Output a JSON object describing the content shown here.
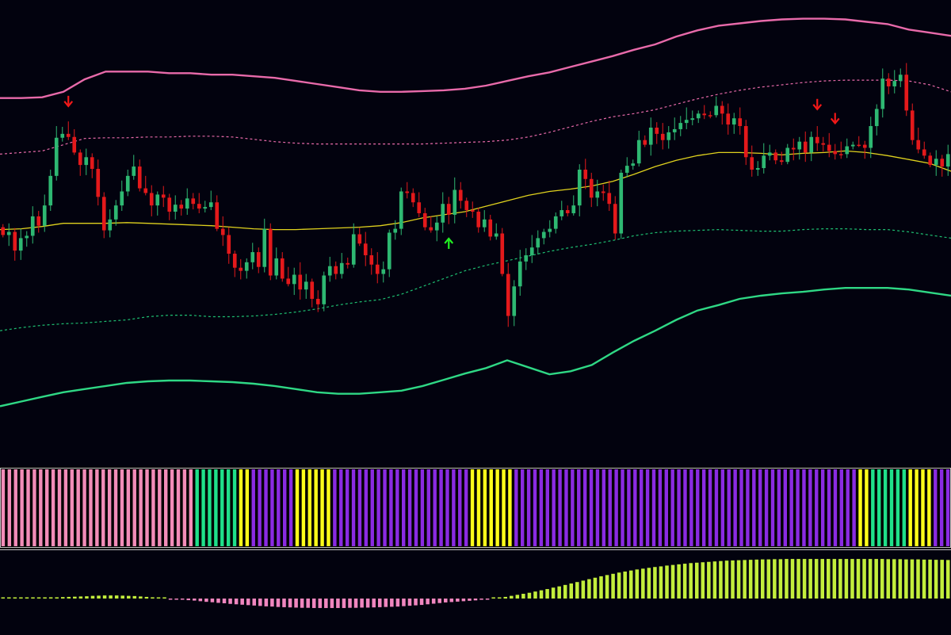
{
  "chart_data": [
    {
      "type": "candlestick",
      "panel": "price",
      "title": "",
      "xlabel": "",
      "ylabel": "",
      "ylim": [
        0,
        600
      ],
      "colors": {
        "background": "#02020e",
        "bull": "#2eb872",
        "bear": "#e4191b",
        "upper_outer_band": "#e86aaa",
        "upper_inner_band": "#e86aaa",
        "middle_line": "#e0d21e",
        "lower_inner_band": "#1ec072",
        "lower_outer_band": "#2fd885",
        "buy_arrow": "#22f022",
        "sell_arrow": "#f21818"
      },
      "bars": {
        "open": [
          292,
          302,
          298,
          322,
          306,
          303,
          278,
          290,
          264,
          226,
          177,
          172,
          176,
          196,
          212,
          202,
          217,
          253,
          296,
          282,
          264,
          246,
          226,
          214,
          242,
          248,
          264,
          250,
          254,
          272,
          263,
          268,
          255,
          262,
          268,
          266,
          260,
          294,
          302,
          326,
          344,
          348,
          337,
          324,
          343,
          294,
          354,
          332,
          358,
          365,
          353,
          372,
          362,
          384,
          391,
          354,
          342,
          352,
          338,
          340,
          301,
          313,
          328,
          340,
          352,
          346,
          299,
          294,
          246,
          248,
          260,
          274,
          292,
          296,
          286,
          262,
          276,
          244,
          258,
          270,
          272,
          292,
          282,
          304,
          300,
          352,
          406,
          368,
          336,
          328,
          318,
          306,
          298,
          294,
          278,
          270,
          274,
          264,
          218,
          230,
          254,
          246,
          248,
          262,
          300,
          222,
          213,
          210,
          180,
          186,
          164,
          172,
          180,
          170,
          166,
          158,
          154,
          152,
          146,
          148,
          148,
          136,
          146,
          160,
          152,
          162,
          202,
          218,
          216,
          200,
          196,
          206,
          208,
          190,
          192,
          182,
          196,
          176,
          184,
          186,
          194,
          198,
          198,
          188,
          186,
          186,
          190,
          162,
          140,
          101,
          111,
          104,
          96,
          142,
          180,
          192,
          200,
          212,
          204,
          214
        ],
        "close": [
          302,
          298,
          322,
          306,
          303,
          278,
          290,
          264,
          226,
          177,
          172,
          176,
          196,
          212,
          202,
          217,
          253,
          296,
          282,
          264,
          246,
          226,
          214,
          242,
          248,
          264,
          250,
          254,
          272,
          263,
          268,
          255,
          262,
          268,
          266,
          260,
          294,
          302,
          326,
          344,
          348,
          337,
          324,
          343,
          294,
          354,
          332,
          358,
          365,
          353,
          372,
          362,
          384,
          391,
          354,
          342,
          352,
          338,
          340,
          301,
          313,
          328,
          340,
          352,
          346,
          299,
          294,
          246,
          248,
          260,
          274,
          292,
          296,
          286,
          262,
          276,
          244,
          258,
          270,
          272,
          292,
          282,
          304,
          300,
          352,
          406,
          368,
          336,
          328,
          318,
          306,
          298,
          294,
          278,
          270,
          274,
          264,
          218,
          230,
          254,
          246,
          248,
          262,
          300,
          222,
          213,
          210,
          180,
          186,
          164,
          172,
          180,
          170,
          166,
          158,
          154,
          152,
          146,
          148,
          148,
          136,
          146,
          160,
          152,
          162,
          202,
          218,
          216,
          200,
          196,
          206,
          208,
          190,
          192,
          182,
          196,
          176,
          184,
          186,
          194,
          198,
          198,
          188,
          186,
          186,
          190,
          162,
          140,
          101,
          111,
          104,
          96,
          142,
          180,
          192,
          200,
          212,
          204,
          214,
          198
        ]
      },
      "overlays": [
        {
          "name": "",
          "role": "upper_outer_band",
          "style": "solid",
          "values": [
            126,
            126,
            125,
            118,
            102,
            92,
            92,
            92,
            94,
            94,
            96,
            96,
            98,
            100,
            104,
            108,
            112,
            116,
            118,
            118,
            117,
            116,
            114,
            110,
            104,
            98,
            93,
            86,
            79,
            72,
            64,
            57,
            47,
            39,
            33,
            30,
            27,
            25,
            24,
            24,
            25,
            28,
            31,
            38,
            42,
            46
          ]
        },
        {
          "name": "",
          "role": "upper_inner_band",
          "style": "dotted",
          "values": [
            198,
            196,
            194,
            186,
            178,
            177,
            177,
            176,
            176,
            175,
            175,
            176,
            179,
            182,
            184,
            185,
            185,
            185,
            185,
            185,
            185,
            184,
            183,
            182,
            180,
            176,
            170,
            163,
            156,
            150,
            146,
            141,
            134,
            127,
            121,
            116,
            112,
            109,
            106,
            104,
            103,
            103,
            103,
            104,
            109,
            118
          ]
        },
        {
          "name": "",
          "role": "middle_line",
          "style": "solid",
          "values": [
            295,
            294,
            291,
            287,
            287,
            287,
            286,
            287,
            288,
            289,
            290,
            292,
            294,
            295,
            295,
            294,
            293,
            292,
            290,
            286,
            280,
            276,
            272,
            265,
            258,
            251,
            246,
            243,
            239,
            233,
            224,
            214,
            206,
            200,
            196,
            196,
            197,
            199,
            197,
            196,
            194,
            196,
            200,
            205,
            210,
            220
          ]
        },
        {
          "name": "",
          "role": "lower_inner_band",
          "style": "dotted",
          "values": [
            425,
            421,
            418,
            416,
            415,
            413,
            411,
            407,
            405,
            405,
            407,
            407,
            406,
            404,
            401,
            397,
            392,
            388,
            385,
            378,
            368,
            358,
            348,
            341,
            335,
            329,
            323,
            318,
            314,
            309,
            303,
            299,
            297,
            296,
            295,
            296,
            297,
            297,
            295,
            294,
            294,
            295,
            295,
            298,
            302,
            306
          ]
        },
        {
          "name": "",
          "role": "lower_outer_band",
          "style": "solid",
          "values": [
            522,
            516,
            510,
            504,
            500,
            496,
            492,
            490,
            489,
            489,
            490,
            491,
            493,
            496,
            500,
            504,
            506,
            506,
            504,
            502,
            496,
            488,
            480,
            473,
            463,
            472,
            481,
            477,
            469,
            453,
            438,
            425,
            411,
            399,
            392,
            384,
            380,
            377,
            375,
            372,
            370,
            370,
            370,
            372,
            376,
            380
          ]
        }
      ],
      "signals": [
        {
          "type": "sell",
          "bar_index": 11
        },
        {
          "type": "buy",
          "bar_index": 75
        },
        {
          "type": "sell",
          "bar_index": 137
        },
        {
          "type": "sell",
          "bar_index": 140
        }
      ]
    },
    {
      "type": "heatmap",
      "panel": "color_bar",
      "colors": {
        "pink": "#f28cb8",
        "green": "#1fe08a",
        "yellow": "#ffff1a",
        "purple": "#8a2be2",
        "separator": "#000000",
        "border": "#c0c0c0"
      },
      "segments": [
        {
          "color": "pink",
          "count": 31
        },
        {
          "color": "green",
          "count": 7
        },
        {
          "color": "yellow",
          "count": 2
        },
        {
          "color": "purple",
          "count": 7
        },
        {
          "color": "yellow",
          "count": 6
        },
        {
          "color": "purple",
          "count": 22
        },
        {
          "color": "yellow",
          "count": 7
        },
        {
          "color": "purple",
          "count": 55
        },
        {
          "color": "yellow",
          "count": 2
        },
        {
          "color": "green",
          "count": 6
        },
        {
          "color": "yellow",
          "count": 4
        },
        {
          "color": "purple",
          "count": 3
        }
      ]
    },
    {
      "type": "bar",
      "panel": "histogram",
      "ylim": [
        -20,
        20
      ],
      "colors": {
        "positive": "#c3ee3c",
        "negative": "#f086bf",
        "border": "#c0c0c0"
      },
      "values": [
        0,
        0.1,
        0.2,
        0.3,
        0.3,
        0.4,
        0.5,
        0.5,
        0.6,
        0.6,
        0.7,
        0.8,
        0.9,
        1.0,
        1.1,
        1.3,
        1.4,
        1.5,
        1.5,
        1.5,
        1.4,
        1.3,
        1.2,
        1.0,
        0.8,
        0.6,
        0.4,
        0.2,
        -0.1,
        -0.3,
        -0.5,
        -0.8,
        -1.0,
        -1.3,
        -1.6,
        -1.8,
        -2.1,
        -2.3,
        -2.6,
        -2.8,
        -3.0,
        -3.2,
        -3.4,
        -3.6,
        -3.8,
        -3.9,
        -4.1,
        -4.2,
        -4.3,
        -4.4,
        -4.5,
        -4.5,
        -4.6,
        -4.6,
        -4.6,
        -4.6,
        -4.6,
        -4.6,
        -4.5,
        -4.5,
        -4.4,
        -4.4,
        -4.3,
        -4.2,
        -4.1,
        -4.0,
        -3.9,
        -3.7,
        -3.5,
        -3.3,
        -3.1,
        -2.8,
        -2.5,
        -2.2,
        -1.9,
        -1.7,
        -1.5,
        -1.3,
        -1.1,
        -0.9,
        -0.6,
        -0.3,
        0,
        0.4,
        0.8,
        1.3,
        1.8,
        2.3,
        2.8,
        3.4,
        4.0,
        4.6,
        5.3,
        5.9,
        6.6,
        7.3,
        8.0,
        8.7,
        9.4,
        10.1,
        10.8,
        11.4,
        12.0,
        12.6,
        13.1,
        13.6,
        14.1,
        14.5,
        14.9,
        15.3,
        15.6,
        16.0,
        16.3,
        16.6,
        16.9,
        17.2,
        17.4,
        17.6,
        17.8,
        18.0,
        18.2,
        18.4,
        18.5,
        18.6,
        18.7,
        18.8,
        18.9,
        19.0,
        19.0,
        19.1,
        19.1,
        19.2,
        19.2,
        19.2,
        19.2,
        19.2,
        19.2,
        19.2,
        19.2,
        19.2,
        19.2,
        19.2,
        19.2,
        19.2,
        19.2,
        19.2,
        19.2,
        19.2,
        19.1,
        19.1,
        19.1,
        19.0,
        19.0,
        19.0,
        18.9,
        18.9,
        18.8,
        18.8,
        18.7
      ]
    }
  ]
}
